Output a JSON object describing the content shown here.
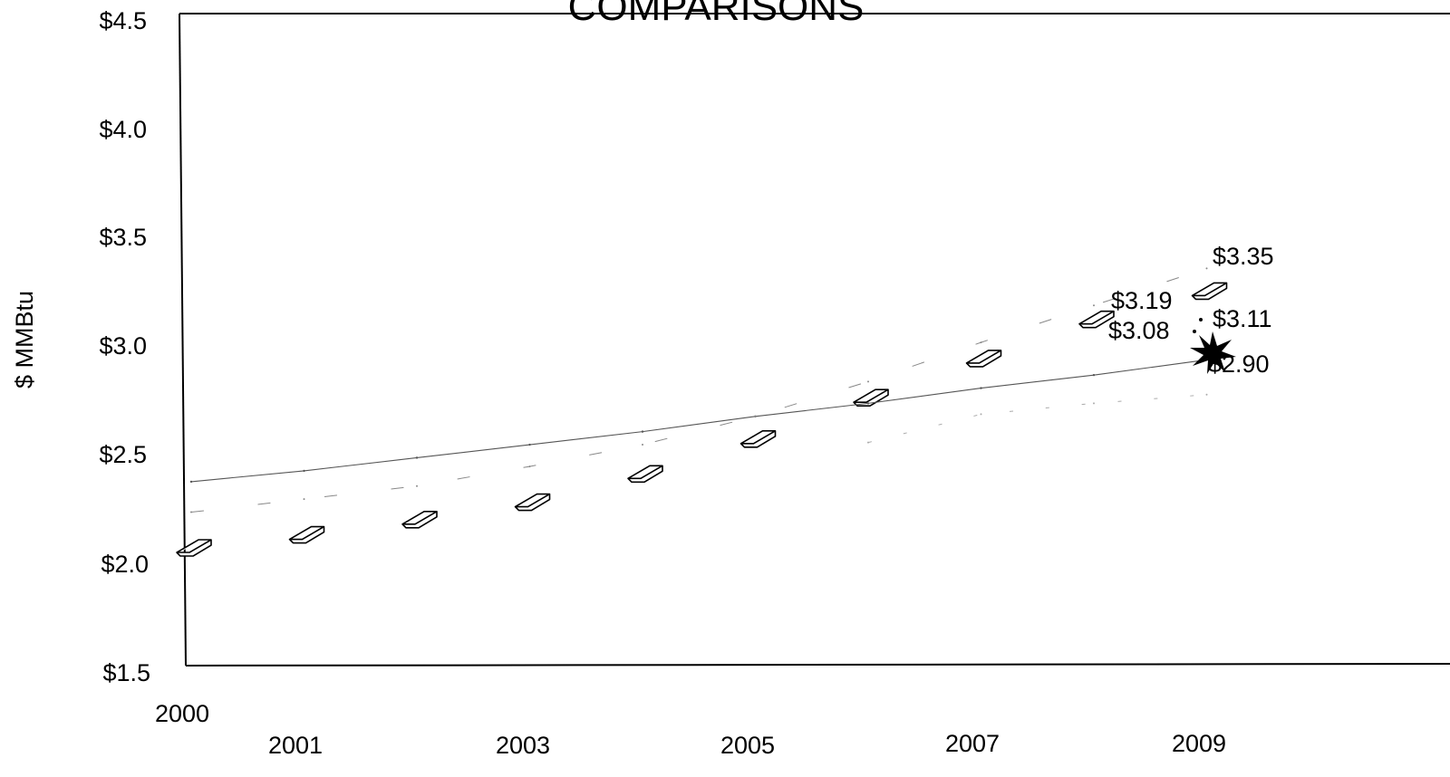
{
  "chart_data": {
    "type": "line",
    "title": "COMPARISONS",
    "xlabel": "",
    "ylabel": "$ MMBtu",
    "x": [
      2000,
      2001,
      2002,
      2003,
      2004,
      2005,
      2006,
      2007,
      2008,
      2009
    ],
    "x_tick_labels": [
      "2000",
      "2001",
      "2003",
      "2005",
      "2007",
      "2009"
    ],
    "y_tick_labels": [
      "$4.5",
      "$4.0",
      "$3.5",
      "$3.0",
      "$2.5",
      "$2.0",
      "$1.5"
    ],
    "ylim": [
      1.5,
      4.5
    ],
    "grid": false,
    "series": [
      {
        "values": [
          2.07,
          2.13,
          2.2,
          2.28,
          2.41,
          2.57,
          2.76,
          2.94,
          3.12,
          3.25
        ]
      },
      {
        "values": [
          2.37,
          2.42,
          2.48,
          2.54,
          2.6,
          2.67,
          2.73,
          2.8,
          2.86,
          2.93
        ]
      },
      {
        "values": [
          2.23,
          2.29,
          2.35,
          2.44,
          2.54,
          2.67,
          2.83,
          3.01,
          3.18,
          3.35
        ]
      },
      {
        "values": [
          null,
          null,
          null,
          null,
          null,
          null,
          2.55,
          2.68,
          2.73,
          2.77
        ]
      }
    ],
    "endpoint_labels": [
      "$3.35",
      "$3.19",
      "$3.11",
      "$3.08",
      "$2.90"
    ]
  }
}
